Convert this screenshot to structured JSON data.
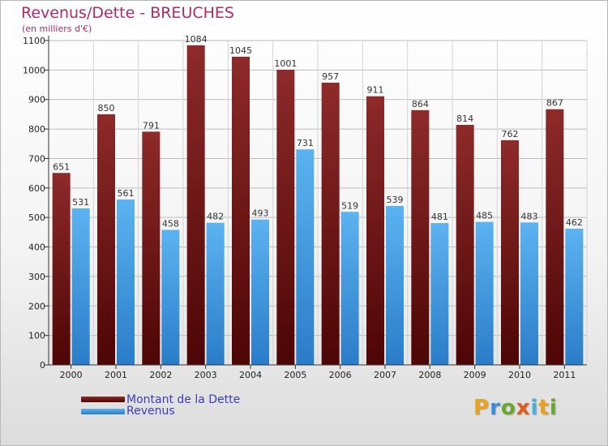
{
  "title": "Revenus/Dette - BREUCHES",
  "subtitle": "(en milliers d'€)",
  "logo": "Proxiti",
  "chart_data": {
    "type": "bar",
    "categories": [
      "2000",
      "2001",
      "2002",
      "2003",
      "2004",
      "2005",
      "2006",
      "2007",
      "2008",
      "2009",
      "2010",
      "2011"
    ],
    "series": [
      {
        "name": "Montant de la Dette",
        "color": "#7a1a1a",
        "values": [
          651,
          850,
          791,
          1084,
          1045,
          1001,
          957,
          911,
          864,
          814,
          762,
          867
        ]
      },
      {
        "name": "Revenus",
        "color": "#4ea3e6",
        "values": [
          531,
          561,
          458,
          482,
          493,
          731,
          519,
          539,
          481,
          485,
          483,
          462
        ]
      }
    ],
    "yticks": [
      0,
      100,
      200,
      300,
      400,
      500,
      600,
      700,
      800,
      900,
      1000,
      1100
    ],
    "ylim": [
      0,
      1100
    ],
    "grid": true,
    "legend_position": "bottom-left"
  }
}
